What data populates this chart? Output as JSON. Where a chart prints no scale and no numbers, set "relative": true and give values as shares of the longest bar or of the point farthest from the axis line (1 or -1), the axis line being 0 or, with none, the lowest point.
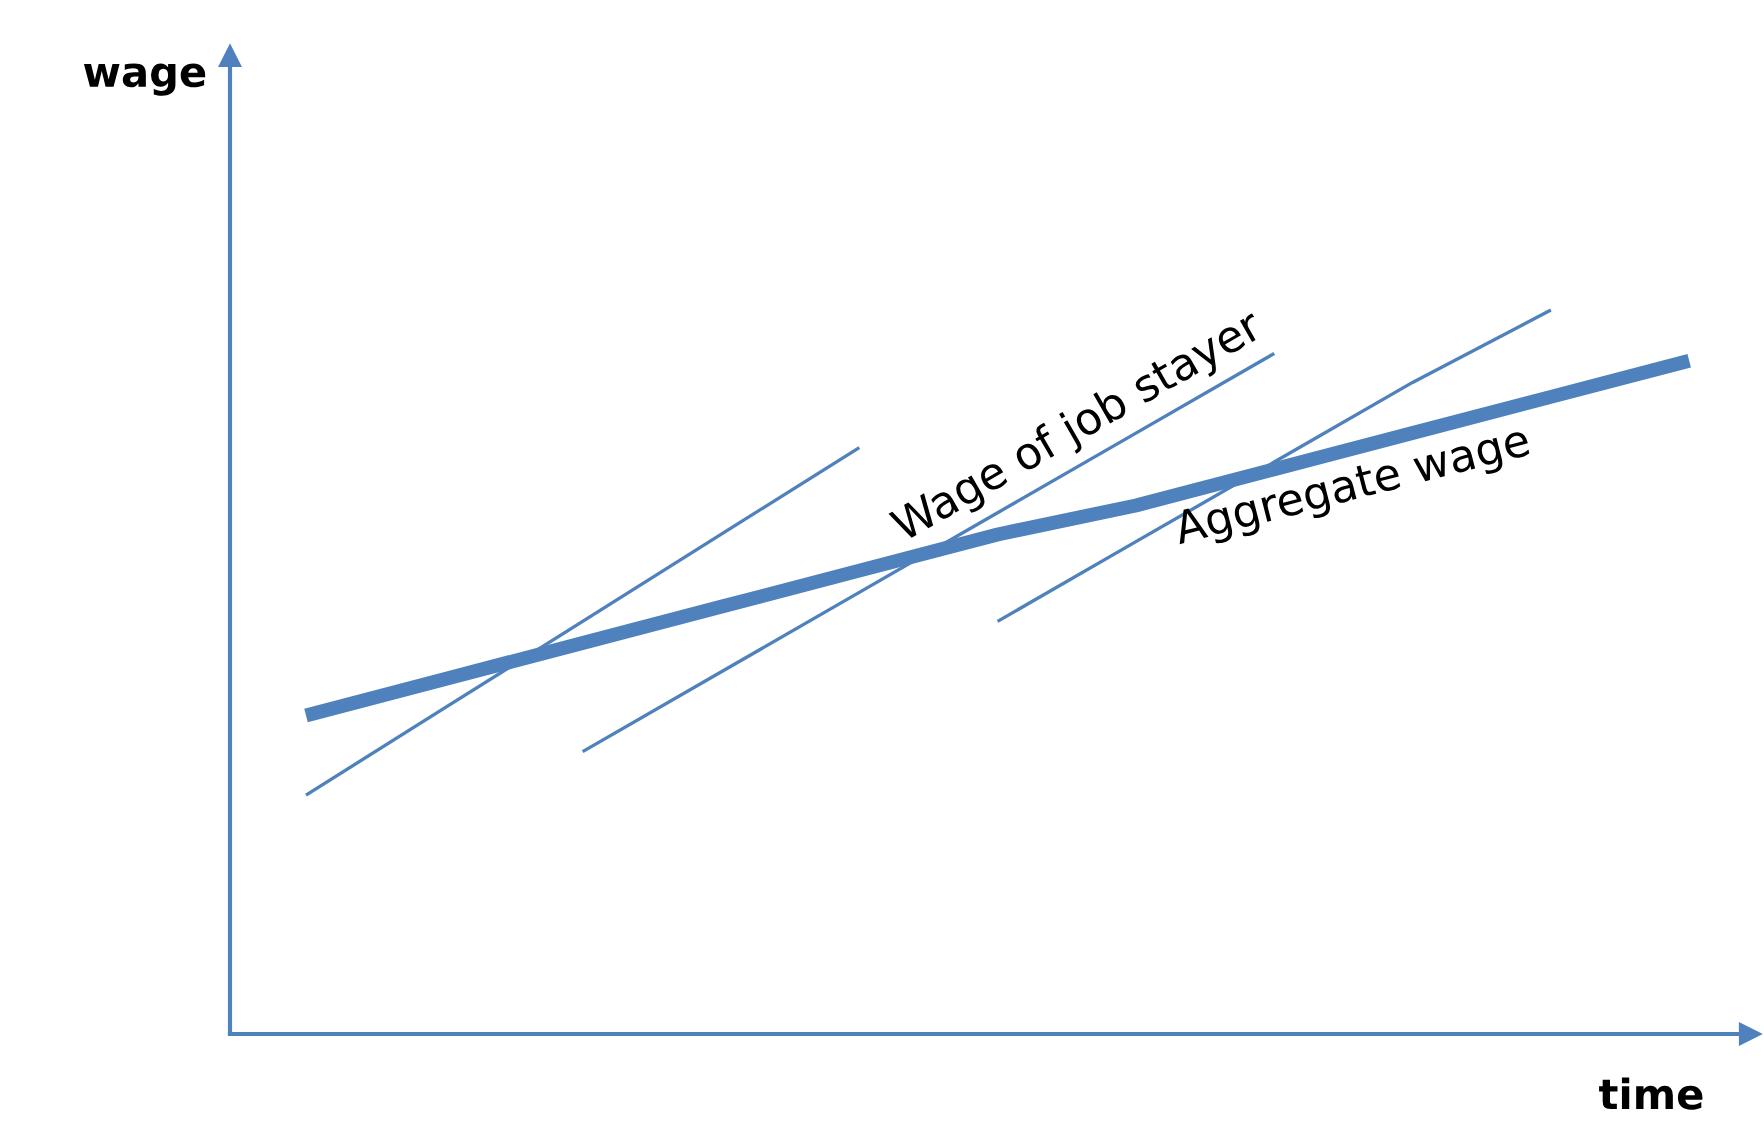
{
  "chart_data": {
    "type": "line",
    "relative": true,
    "xlabel": "time",
    "annotations": [
      "wage"
    ],
    "marker": "none",
    "line_style": "solid",
    "categories": [
      null,
      null,
      null,
      null,
      null,
      null,
      null,
      null,
      null,
      null,
      null
    ],
    "series": [
      {
        "name": "Aggregate wage",
        "color": "#4f81bd",
        "values": [
          0.44,
          0.49,
          0.54,
          0.59,
          0.64,
          0.69,
          0.73,
          0.78,
          0.83,
          0.88,
          0.93
        ]
      },
      {
        "color": "#4f81bd",
        "values": [
          0.33,
          0.45,
          0.57,
          0.69,
          0.81,
          null,
          null,
          null,
          null,
          null,
          null
        ]
      },
      {
        "name": "Wage of job stayer",
        "color": "#4f81bd",
        "values": [
          null,
          null,
          0.39,
          0.5,
          0.61,
          0.72,
          0.83,
          0.94,
          null,
          null,
          null
        ]
      },
      {
        "color": "#4f81bd",
        "values": [
          null,
          null,
          null,
          null,
          null,
          0.57,
          0.68,
          0.79,
          0.9,
          1.0,
          null
        ]
      }
    ]
  }
}
